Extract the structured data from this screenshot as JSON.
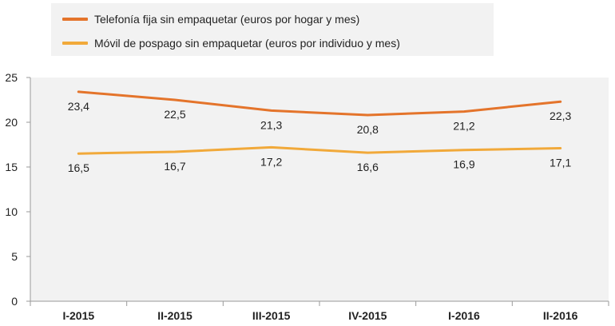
{
  "colors": {
    "plot_bg": "#f2f2f2",
    "series_1": "#e4742b",
    "series_2": "#f1a93a",
    "axis": "#9a9a9a",
    "text": "#222222"
  },
  "chart_data": {
    "type": "line",
    "categories": [
      "I-2015",
      "II-2015",
      "III-2015",
      "IV-2015",
      "I-2016",
      "II-2016"
    ],
    "series": [
      {
        "name": "Telefonía fija sin empaquetar (euros por hogar y mes)",
        "values": [
          23.4,
          22.5,
          21.3,
          20.8,
          21.2,
          22.3
        ],
        "labels": [
          "23,4",
          "22,5",
          "21,3",
          "20,8",
          "21,2",
          "22,3"
        ]
      },
      {
        "name": "Móvil de pospago sin empaquetar (euros por individuo y mes)",
        "values": [
          16.5,
          16.7,
          17.2,
          16.6,
          16.9,
          17.1
        ],
        "labels": [
          "16,5",
          "16,7",
          "17,2",
          "16,6",
          "16,9",
          "17,1"
        ]
      }
    ],
    "yticks": [
      0,
      5,
      10,
      15,
      20,
      25
    ],
    "ylim": [
      0,
      25
    ],
    "grid": false,
    "legend_position": "top-left",
    "title": "",
    "xlabel": "",
    "ylabel": ""
  }
}
